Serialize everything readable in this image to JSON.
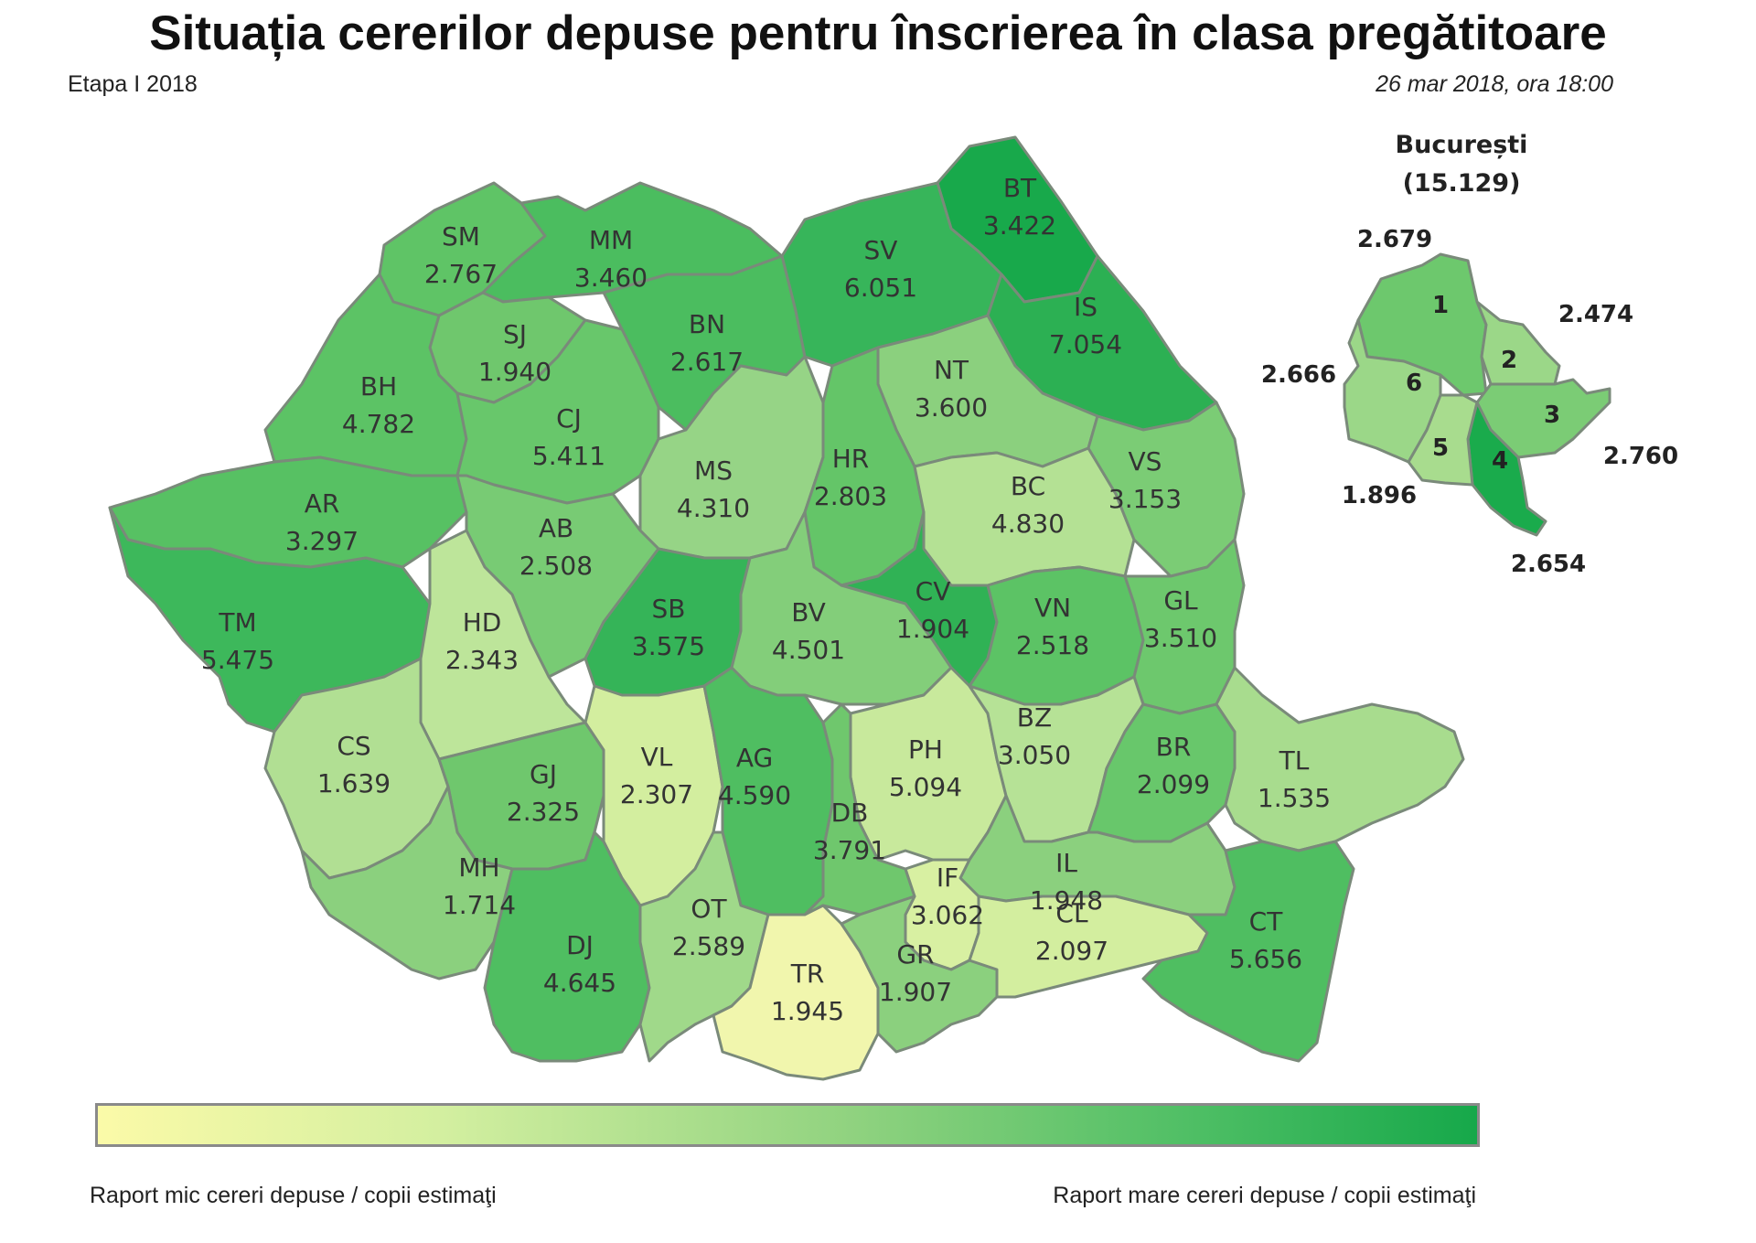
{
  "header": {
    "title": "Situația cererilor depuse pentru înscrierea în clasa pregătitoare",
    "subtitle": "Etapa I 2018",
    "date": "26 mar 2018, ora 18:00"
  },
  "counties": [
    {
      "code": "SM",
      "value": "2.767",
      "color": "#5fc466"
    },
    {
      "code": "MM",
      "value": "3.460",
      "color": "#4bbd5f"
    },
    {
      "code": "BT",
      "value": "3.422",
      "color": "#18a94b"
    },
    {
      "code": "SV",
      "value": "6.051",
      "color": "#37b55a"
    },
    {
      "code": "SJ",
      "value": "1.940",
      "color": "#6fc76d"
    },
    {
      "code": "BN",
      "value": "2.617",
      "color": "#4bbd5f"
    },
    {
      "code": "IS",
      "value": "7.054",
      "color": "#2cb053"
    },
    {
      "code": "BH",
      "value": "4.782",
      "color": "#5cc365"
    },
    {
      "code": "CJ",
      "value": "5.411",
      "color": "#68c76b"
    },
    {
      "code": "NT",
      "value": "3.600",
      "color": "#8bd07e"
    },
    {
      "code": "MS",
      "value": "4.310",
      "color": "#96d486"
    },
    {
      "code": "HR",
      "value": "2.803",
      "color": "#64c568"
    },
    {
      "code": "BC",
      "value": "4.830",
      "color": "#b4e194"
    },
    {
      "code": "VS",
      "value": "3.153",
      "color": "#7bcc75"
    },
    {
      "code": "AR",
      "value": "3.297",
      "color": "#57c163"
    },
    {
      "code": "AB",
      "value": "2.508",
      "color": "#78cb74"
    },
    {
      "code": "TM",
      "value": "5.475",
      "color": "#3db85b"
    },
    {
      "code": "HD",
      "value": "2.343",
      "color": "#bde59a"
    },
    {
      "code": "SB",
      "value": "3.575",
      "color": "#35b458"
    },
    {
      "code": "BV",
      "value": "4.501",
      "color": "#83ce7a"
    },
    {
      "code": "CV",
      "value": "1.904",
      "color": "#30b255"
    },
    {
      "code": "VN",
      "value": "2.518",
      "color": "#5cc365"
    },
    {
      "code": "GL",
      "value": "3.510",
      "color": "#6dc86d"
    },
    {
      "code": "CS",
      "value": "1.639",
      "color": "#b1df93"
    },
    {
      "code": "GJ",
      "value": "2.325",
      "color": "#6fc76d"
    },
    {
      "code": "VL",
      "value": "2.307",
      "color": "#d3ee9f"
    },
    {
      "code": "AG",
      "value": "4.590",
      "color": "#4fbe61"
    },
    {
      "code": "PH",
      "value": "5.094",
      "color": "#c8e99c"
    },
    {
      "code": "BZ",
      "value": "3.050",
      "color": "#b6e296"
    },
    {
      "code": "BR",
      "value": "2.099",
      "color": "#68c76b"
    },
    {
      "code": "TL",
      "value": "1.535",
      "color": "#a8dc8e"
    },
    {
      "code": "DB",
      "value": "3.791",
      "color": "#6fc76d"
    },
    {
      "code": "MH",
      "value": "1.714",
      "color": "#8bd07e"
    },
    {
      "code": "IL",
      "value": "1.948",
      "color": "#8bd07e"
    },
    {
      "code": "IF",
      "value": "3.062",
      "color": "#d8f0a2"
    },
    {
      "code": "DJ",
      "value": "4.645",
      "color": "#4fbe61"
    },
    {
      "code": "OT",
      "value": "2.589",
      "color": "#a0d98a"
    },
    {
      "code": "TR",
      "value": "1.945",
      "color": "#f1f6ad"
    },
    {
      "code": "GR",
      "value": "1.907",
      "color": "#8bd07e"
    },
    {
      "code": "CL",
      "value": "2.097",
      "color": "#d3ee9f"
    },
    {
      "code": "CT",
      "value": "5.656",
      "color": "#4fbe61"
    }
  ],
  "bucharest": {
    "title": "București",
    "total": "(15.129)",
    "sectors": [
      {
        "sector": "1",
        "value": "2.679",
        "color": "#6dc86d"
      },
      {
        "sector": "2",
        "value": "2.474",
        "color": "#9bd788"
      },
      {
        "sector": "3",
        "value": "2.760",
        "color": "#7bcc75"
      },
      {
        "sector": "4",
        "value": "2.654",
        "color": "#1aab4c"
      },
      {
        "sector": "5",
        "value": "1.896",
        "color": "#a8dc8e"
      },
      {
        "sector": "6",
        "value": "2.666",
        "color": "#9bd788"
      }
    ]
  },
  "legend": {
    "low_label": "Raport mic cereri depuse / copii estimaţi",
    "high_label": "Raport mare cereri depuse / copii estimaţi",
    "low_color": "#fbfaa8",
    "high_color": "#16a84a"
  }
}
